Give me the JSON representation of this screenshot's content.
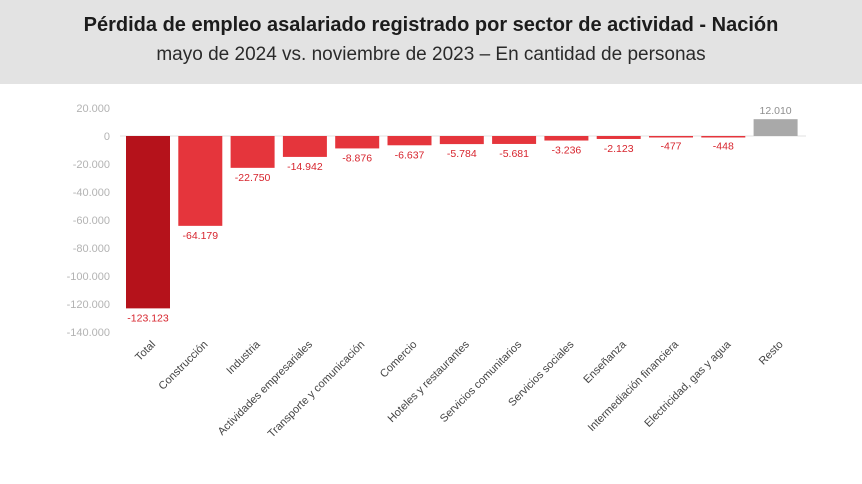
{
  "header": {
    "title": "Pérdida de empleo asalariado registrado por sector de actividad - Nación",
    "subtitle": "mayo de 2024 vs. noviembre de 2023 – En cantidad de personas"
  },
  "colors": {
    "header_bg": "#e3e3e3",
    "bar_darkest": "#b5121b",
    "bar_red": "#e5353c",
    "bar_positive": "#a9a9a9",
    "label_red": "#d7242d"
  },
  "chart_data": {
    "type": "bar",
    "title": "Pérdida de empleo asalariado registrado por sector de actividad - Nación",
    "subtitle": "mayo de 2024 vs. noviembre de 2023 – En cantidad de personas",
    "categories": [
      "Total",
      "Construcción",
      "Industria",
      "Actividades empresariales",
      "Transporte y comunicación",
      "Comercio",
      "Hoteles y restaurantes",
      "Servicios comunitarios",
      "Servicios sociales",
      "Enseñanza",
      "Intermediación financiera",
      "Electricidad, gas y agua",
      "Resto"
    ],
    "values": [
      -123123,
      -64179,
      -22750,
      -14942,
      -8876,
      -6637,
      -5784,
      -5681,
      -3236,
      -2123,
      -477,
      -448,
      12010
    ],
    "data_labels": [
      "-123.123",
      "-64.179",
      "-22.750",
      "-14.942",
      "-8.876",
      "-6.637",
      "-5.784",
      "-5.681",
      "-3.236",
      "-2.123",
      "-477",
      "-448",
      "12.010"
    ],
    "yticks": [
      20000,
      0,
      -20000,
      -40000,
      -60000,
      -80000,
      -100000,
      -120000,
      -140000
    ],
    "ytick_labels": [
      "20.000",
      "0",
      "-20.000",
      "-40.000",
      "-60.000",
      "-80.000",
      "-100.000",
      "-120.000",
      "-140.000"
    ],
    "ylim": [
      -140000,
      20000
    ],
    "grid": false,
    "legend": "none"
  }
}
